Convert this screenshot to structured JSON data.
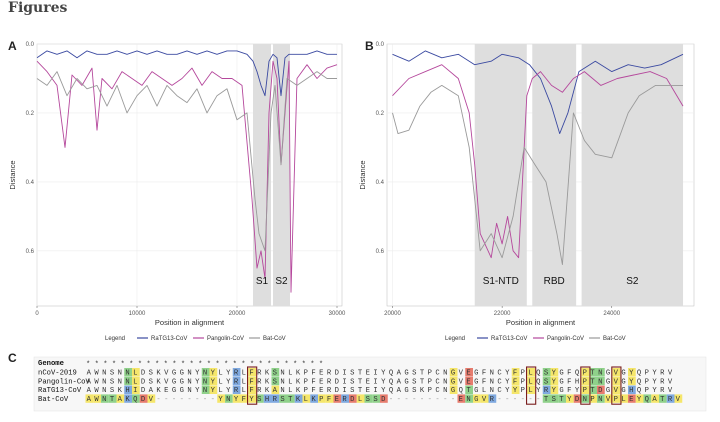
{
  "figure_title": "Figures",
  "panels": {
    "a": "A",
    "b": "B",
    "c": "C"
  },
  "colors": {
    "ratg13": "#3b4aa1",
    "pangolin": "#b5489c",
    "bat": "#9a9a9a",
    "shade": "#dcdcdc"
  },
  "chart_data": [
    {
      "type": "line",
      "panel": "A",
      "xlabel": "Position in alignment",
      "ylabel": "Distance",
      "xlim": [
        0,
        30500
      ],
      "ylim": [
        0,
        0.76
      ],
      "y_reversed": true,
      "grid": true,
      "xticks": [
        "0",
        "10000",
        "20000",
        "30000"
      ],
      "xtick_values": [
        0,
        10000,
        20000,
        30000
      ],
      "yticks": [
        "0.0",
        "0.2",
        "0.4",
        "0.6"
      ],
      "ytick_values": [
        0,
        0.2,
        0.4,
        0.6
      ],
      "regions": [
        {
          "label": "S1",
          "x0": 21600,
          "x1": 23400
        },
        {
          "label": "S2",
          "x0": 23600,
          "x1": 25300
        }
      ],
      "series": [
        {
          "name": "RaTG13-CoV",
          "color": "#3b4aa1",
          "x": [
            0,
            1000,
            2000,
            3000,
            4000,
            5000,
            6000,
            7000,
            8000,
            9000,
            10000,
            11000,
            12000,
            13000,
            14000,
            15000,
            16000,
            17000,
            18000,
            19000,
            20000,
            21000,
            21600,
            22000,
            22400,
            22800,
            23200,
            23600,
            24000,
            24400,
            24800,
            25200,
            26000,
            27000,
            28000,
            29000,
            30000
          ],
          "y": [
            0.04,
            0.02,
            0.03,
            0.02,
            0.04,
            0.02,
            0.03,
            0.03,
            0.02,
            0.03,
            0.02,
            0.03,
            0.02,
            0.03,
            0.03,
            0.02,
            0.03,
            0.02,
            0.03,
            0.02,
            0.02,
            0.03,
            0.05,
            0.08,
            0.12,
            0.15,
            0.05,
            0.03,
            0.04,
            0.15,
            0.04,
            0.03,
            0.03,
            0.03,
            0.02,
            0.03,
            0.03
          ]
        },
        {
          "name": "Pangolin-CoV",
          "color": "#b5489c",
          "x": [
            0,
            1000,
            2000,
            2800,
            3500,
            4500,
            5500,
            6000,
            6500,
            7500,
            8500,
            9500,
            10500,
            11500,
            12500,
            13500,
            14500,
            15500,
            16500,
            17500,
            18500,
            19500,
            20500,
            21500,
            22000,
            22400,
            22800,
            23200,
            23600,
            24000,
            24400,
            25200,
            25400,
            26000,
            27000,
            28000,
            29000,
            30000
          ],
          "y": [
            0.05,
            0.08,
            0.12,
            0.3,
            0.09,
            0.12,
            0.07,
            0.25,
            0.1,
            0.13,
            0.08,
            0.1,
            0.12,
            0.08,
            0.1,
            0.12,
            0.1,
            0.07,
            0.12,
            0.08,
            0.1,
            0.1,
            0.12,
            0.45,
            0.65,
            0.6,
            0.68,
            0.2,
            0.05,
            0.1,
            0.35,
            0.05,
            0.72,
            0.1,
            0.06,
            0.1,
            0.07,
            0.06
          ]
        },
        {
          "name": "Bat-CoV",
          "color": "#9a9a9a",
          "x": [
            0,
            1000,
            2000,
            3000,
            4000,
            5000,
            6000,
            7000,
            8000,
            9000,
            10000,
            11000,
            12000,
            13000,
            14000,
            15000,
            16000,
            17000,
            18000,
            19000,
            20000,
            21000,
            21800,
            22200,
            22800,
            23400,
            23800,
            24400,
            25000,
            26000,
            27000,
            28000,
            29000,
            30000
          ],
          "y": [
            0.1,
            0.12,
            0.08,
            0.15,
            0.1,
            0.13,
            0.12,
            0.18,
            0.12,
            0.2,
            0.15,
            0.12,
            0.18,
            0.12,
            0.15,
            0.17,
            0.13,
            0.2,
            0.15,
            0.13,
            0.22,
            0.2,
            0.45,
            0.55,
            0.6,
            0.2,
            0.12,
            0.35,
            0.1,
            0.12,
            0.1,
            0.08,
            0.1,
            0.1
          ]
        }
      ]
    },
    {
      "type": "line",
      "panel": "B",
      "xlabel": "Position in alignment",
      "ylabel": "Distance",
      "xlim": [
        19900,
        25500
      ],
      "ylim": [
        0,
        0.76
      ],
      "y_reversed": true,
      "grid": true,
      "xticks": [
        "20000",
        "22000",
        "24000"
      ],
      "xtick_values": [
        20000,
        22000,
        24000
      ],
      "yticks": [
        "0.0",
        "0.2",
        "0.4",
        "0.6"
      ],
      "ytick_values": [
        0,
        0.2,
        0.4,
        0.6
      ],
      "regions": [
        {
          "label": "S1-NTD",
          "x0": 21500,
          "x1": 22450
        },
        {
          "label": "RBD",
          "x0": 22550,
          "x1": 23350
        },
        {
          "label": "S2",
          "x0": 23450,
          "x1": 25300
        }
      ],
      "series": [
        {
          "name": "RaTG13-CoV",
          "color": "#3b4aa1",
          "x": [
            20000,
            20300,
            20600,
            20900,
            21200,
            21500,
            21800,
            22000,
            22300,
            22500,
            22700,
            22900,
            23050,
            23200,
            23400,
            23700,
            24000,
            24300,
            24600,
            24900,
            25300
          ],
          "y": [
            0.03,
            0.05,
            0.02,
            0.04,
            0.03,
            0.06,
            0.05,
            0.03,
            0.04,
            0.06,
            0.1,
            0.18,
            0.26,
            0.2,
            0.08,
            0.05,
            0.08,
            0.06,
            0.07,
            0.06,
            0.03
          ]
        },
        {
          "name": "Pangolin-CoV",
          "color": "#b5489c",
          "x": [
            20000,
            20300,
            20600,
            20900,
            21200,
            21400,
            21500,
            21600,
            21800,
            21900,
            22000,
            22100,
            22200,
            22300,
            22450,
            22550,
            22700,
            22900,
            23100,
            23300,
            23500,
            23800,
            24100,
            24400,
            24700,
            25000,
            25300
          ],
          "y": [
            0.15,
            0.1,
            0.08,
            0.06,
            0.1,
            0.2,
            0.35,
            0.55,
            0.62,
            0.52,
            0.58,
            0.5,
            0.6,
            0.62,
            0.15,
            0.1,
            0.08,
            0.12,
            0.14,
            0.1,
            0.08,
            0.12,
            0.1,
            0.09,
            0.08,
            0.1,
            0.18
          ]
        },
        {
          "name": "Bat-CoV",
          "color": "#9a9a9a",
          "x": [
            20000,
            20100,
            20300,
            20500,
            20700,
            20900,
            21200,
            21400,
            21600,
            21800,
            22000,
            22200,
            22400,
            22600,
            22800,
            23000,
            23100,
            23300,
            23500,
            23700,
            24000,
            24300,
            24500,
            24800,
            25300
          ],
          "y": [
            0.2,
            0.26,
            0.25,
            0.18,
            0.14,
            0.12,
            0.15,
            0.3,
            0.6,
            0.55,
            0.62,
            0.5,
            0.3,
            0.35,
            0.4,
            0.55,
            0.64,
            0.2,
            0.28,
            0.32,
            0.33,
            0.2,
            0.15,
            0.12,
            0.12
          ]
        }
      ]
    }
  ],
  "legend": {
    "title": "Legend",
    "items": [
      "RaTG13-CoV",
      "Pangolin-CoV",
      "Bat-CoV"
    ]
  },
  "alignment": {
    "header": "Genome",
    "stars": "* *    *    *       *   *    * *   * * * * * *     *   *   * * * *  *    *    *    *   *  *     * *",
    "rows": [
      {
        "name": "nCoV-2019",
        "seq": "AWNSNNLDSKVGGNYNYLYRLFRKSNLKPFERDISTEIYQAGSTPCNGVEGFNCYFPLQSYGFQPTNGVGYQPYRV"
      },
      {
        "name": "Pangolin-CoV",
        "seq": "AWNSNNLDSKVGGNYNYLYRLFRKSNLKPFERDISTEIYQAGSTPCNGVEGFNCYFPLQSYGFHPTNGVGYQPYRV"
      },
      {
        "name": "RaTG13-CoV",
        "seq": "AWNSKHIDAKEGGNYNYLYRLFRKANLKPFERDISTEIYQAGSKPCNGQTGLNCYYPLYRYGFYPTDGVGHQPYRV"
      },
      {
        "name": "Bat-CoV",
        "seq": "AWNTAKQDV--------YNYFYSHRSTKLKPFERDLSSD---------ENGVR------TSTYDNPNVPLEYQATRV"
      }
    ]
  }
}
